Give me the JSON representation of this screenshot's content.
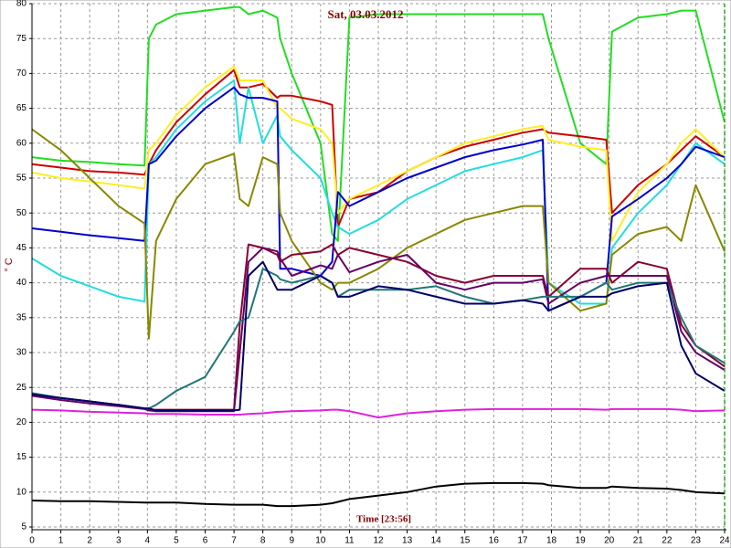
{
  "chart_data": {
    "type": "line",
    "title": "Sat, 03.03.2012",
    "x_label": "Time [23:56]",
    "y_label": "° C",
    "x": [
      0,
      1,
      2,
      3,
      3.9,
      4.05,
      4.3,
      5,
      6,
      7,
      7.2,
      7.5,
      8,
      8.5,
      8.6,
      9,
      10,
      10.4,
      10.6,
      11,
      12,
      13,
      14,
      15,
      16,
      17,
      17.7,
      17.9,
      19,
      19.9,
      20.1,
      21,
      22,
      22.5,
      23,
      24
    ],
    "xlim": [
      0,
      24
    ],
    "xticks": [
      0,
      1,
      2,
      3,
      4,
      5,
      6,
      7,
      8,
      9,
      10,
      11,
      12,
      13,
      14,
      15,
      16,
      17,
      18,
      19,
      20,
      21,
      22,
      23,
      24
    ],
    "ylim": [
      5,
      80
    ],
    "yticks": [
      5,
      10,
      15,
      20,
      25,
      30,
      35,
      40,
      45,
      50,
      55,
      60,
      65,
      70,
      75,
      80
    ],
    "grid": true,
    "series": [
      {
        "color": "#22dd22",
        "values": [
          58,
          57.5,
          57.3,
          57,
          56.8,
          75,
          77,
          78.5,
          79,
          79.5,
          79.5,
          78.5,
          79,
          78,
          75,
          70,
          60,
          47,
          46,
          78,
          78.5,
          78.5,
          78.5,
          78.5,
          78.5,
          78.5,
          78.5,
          75,
          60,
          57,
          76,
          78,
          78.5,
          79,
          79,
          63
        ]
      },
      {
        "color": "#cc0000",
        "values": [
          57,
          56.5,
          56,
          55.8,
          55.5,
          57,
          59,
          63,
          67,
          70.5,
          68,
          68,
          68.5,
          66.5,
          66.8,
          66.8,
          66,
          65.5,
          48,
          52,
          53,
          56,
          58,
          59.5,
          60.5,
          61.5,
          62,
          61.5,
          61,
          60.5,
          50,
          54,
          57,
          59,
          61,
          58
        ]
      },
      {
        "color": "#ffee22",
        "values": [
          55.8,
          55,
          54.5,
          54,
          53.5,
          59,
          60,
          64,
          68,
          71,
          69,
          69,
          69,
          65,
          65,
          63.5,
          62,
          60,
          50,
          52,
          54,
          56,
          58,
          60,
          61,
          62,
          62.5,
          60.5,
          59.5,
          59,
          46,
          53,
          57,
          60,
          62,
          58
        ]
      },
      {
        "color": "#22dddd",
        "values": [
          43.5,
          41,
          39.5,
          38,
          37.3,
          57,
          58,
          62,
          66,
          69,
          60,
          68,
          60,
          64,
          61,
          59,
          55,
          50,
          48,
          47,
          49,
          52,
          54,
          56,
          57,
          58,
          59,
          40,
          37,
          37,
          45,
          50,
          54,
          57,
          60,
          57
        ]
      },
      {
        "color": "#0000cc",
        "values": [
          47.8,
          47.3,
          46.8,
          46.4,
          46,
          57,
          57.5,
          61,
          65,
          68,
          67,
          66.5,
          66.5,
          66,
          42,
          42,
          41,
          43,
          53,
          51,
          53,
          55,
          56.5,
          58,
          59,
          59.8,
          60.5,
          36,
          38,
          40,
          49.5,
          52,
          55,
          57,
          59.5,
          58
        ]
      },
      {
        "color": "#888800",
        "values": [
          62,
          59,
          55,
          51,
          48.5,
          32,
          46,
          52,
          57,
          58.5,
          52,
          51,
          58,
          57,
          50,
          46,
          40,
          39,
          40,
          40,
          42,
          45,
          47,
          49,
          50,
          51,
          51,
          40,
          36,
          37,
          44,
          47,
          48,
          46,
          54,
          44.5
        ]
      },
      {
        "color": "#880033",
        "values": [
          24,
          23.5,
          23,
          22.5,
          22,
          21.8,
          21.8,
          21.8,
          21.8,
          21.8,
          34,
          45.5,
          45,
          44,
          43,
          44,
          44.5,
          45.5,
          44,
          45,
          44,
          43,
          41,
          40,
          41,
          41,
          41,
          38,
          42,
          42,
          40,
          43,
          42,
          34,
          31,
          28
        ]
      },
      {
        "color": "#660066",
        "values": [
          23.8,
          23.2,
          22.7,
          22.3,
          21.9,
          21.7,
          21.6,
          21.6,
          21.6,
          21.6,
          30,
          43,
          45,
          44.5,
          43.5,
          41,
          42.5,
          42,
          44,
          41.5,
          43,
          44,
          40,
          39,
          40,
          40,
          40.5,
          37,
          40,
          41,
          41,
          41,
          41,
          33,
          30,
          27.5
        ]
      },
      {
        "color": "#227777",
        "values": [
          24.2,
          23.5,
          23,
          22.5,
          22,
          22,
          22.5,
          24.5,
          26.5,
          33,
          34.5,
          35,
          42,
          41,
          40.5,
          40,
          41,
          40,
          38,
          39,
          39,
          39,
          39.5,
          38,
          37,
          37.5,
          38,
          38,
          38,
          40,
          39,
          40,
          40,
          35,
          31,
          28.5
        ]
      },
      {
        "color": "#000066",
        "values": [
          24,
          23.5,
          23,
          22.5,
          22,
          22,
          21.7,
          21.7,
          21.7,
          21.7,
          21.8,
          41,
          43,
          39,
          39,
          39,
          41,
          40,
          38,
          38,
          39.5,
          39,
          38,
          37,
          37,
          37.5,
          37,
          36,
          38,
          38,
          38.5,
          39.5,
          40,
          31,
          27,
          24.5
        ]
      },
      {
        "color": "#dd22dd",
        "values": [
          21.8,
          21.7,
          21.5,
          21.4,
          21.3,
          21.2,
          21.2,
          21.2,
          21.1,
          21.1,
          21.1,
          21.2,
          21.3,
          21.5,
          21.5,
          21.6,
          21.7,
          21.8,
          21.8,
          21.6,
          20.7,
          21.3,
          21.6,
          21.8,
          21.9,
          21.9,
          21.9,
          21.9,
          21.9,
          21.8,
          21.9,
          21.9,
          21.9,
          21.8,
          21.6,
          21.7
        ]
      },
      {
        "color": "#000000",
        "values": [
          8.8,
          8.7,
          8.7,
          8.6,
          8.5,
          8.5,
          8.5,
          8.5,
          8.3,
          8.2,
          8.2,
          8.2,
          8.2,
          8,
          8,
          8,
          8.2,
          8.4,
          8.6,
          9,
          9.5,
          10,
          10.8,
          11.2,
          11.3,
          11.3,
          11.2,
          11,
          10.6,
          10.6,
          10.8,
          10.6,
          10.5,
          10.3,
          10,
          9.8
        ]
      }
    ]
  }
}
